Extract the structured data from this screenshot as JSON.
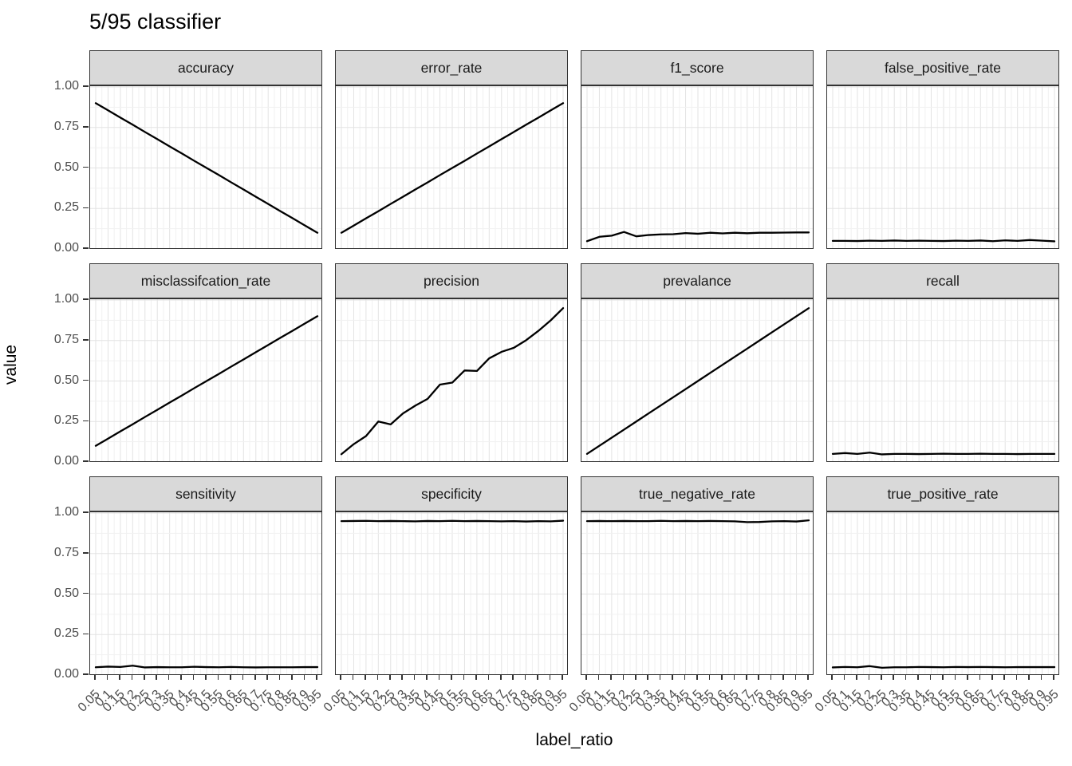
{
  "title": "5/95 classifier",
  "axes": {
    "x_title": "label_ratio",
    "y_title": "value",
    "x_tick_labels": [
      "0.05",
      "0.1",
      "0.15",
      "0.2",
      "0.25",
      "0.3",
      "0.35",
      "0.4",
      "0.45",
      "0.5",
      "0.55",
      "0.6",
      "0.65",
      "0.7",
      "0.75",
      "0.8",
      "0.85",
      "0.9",
      "0.95"
    ],
    "y_tick_labels": [
      "1.00",
      "0.75",
      "0.50",
      "0.25",
      "0.00"
    ],
    "y_tick_values": [
      1.0,
      0.75,
      0.5,
      0.25,
      0.0
    ]
  },
  "colors": {
    "line": "#000000",
    "strip_bg": "#d9d9d9",
    "panel_border": "#333333",
    "grid_major": "#e3e3e3",
    "grid_minor": "#f1f1f1",
    "tick_text": "#4d4d4d",
    "tick_mark": "#333333"
  },
  "chart_data": {
    "type": "line",
    "title": "5/95 classifier",
    "xlabel": "label_ratio",
    "ylabel": "value",
    "xlim": [
      0.05,
      0.95
    ],
    "ylim": [
      0,
      1
    ],
    "grid": "on",
    "legend": "none",
    "facet_layout": {
      "rows": 3,
      "cols": 4
    },
    "x": [
      0.05,
      0.1,
      0.15,
      0.2,
      0.25,
      0.3,
      0.35,
      0.4,
      0.45,
      0.5,
      0.55,
      0.6,
      0.65,
      0.7,
      0.75,
      0.8,
      0.85,
      0.9,
      0.95
    ],
    "facets": [
      {
        "name": "accuracy",
        "values": [
          0.9,
          0.856,
          0.811,
          0.767,
          0.722,
          0.678,
          0.633,
          0.589,
          0.544,
          0.5,
          0.456,
          0.411,
          0.367,
          0.322,
          0.278,
          0.233,
          0.189,
          0.144,
          0.1
        ]
      },
      {
        "name": "error_rate",
        "values": [
          0.1,
          0.144,
          0.189,
          0.233,
          0.278,
          0.322,
          0.367,
          0.411,
          0.456,
          0.5,
          0.544,
          0.589,
          0.633,
          0.678,
          0.722,
          0.767,
          0.811,
          0.856,
          0.9
        ]
      },
      {
        "name": "f1_score",
        "values": [
          0.048,
          0.075,
          0.082,
          0.105,
          0.078,
          0.086,
          0.09,
          0.091,
          0.098,
          0.094,
          0.1,
          0.096,
          0.1,
          0.097,
          0.1,
          0.1,
          0.101,
          0.102,
          0.102
        ]
      },
      {
        "name": "false_positive_rate",
        "values": [
          0.05,
          0.05,
          0.049,
          0.051,
          0.05,
          0.052,
          0.05,
          0.051,
          0.05,
          0.049,
          0.051,
          0.05,
          0.052,
          0.048,
          0.053,
          0.05,
          0.055,
          0.051,
          0.047
        ]
      },
      {
        "name": "misclassifcation_rate",
        "values": [
          0.1,
          0.144,
          0.189,
          0.233,
          0.278,
          0.322,
          0.367,
          0.411,
          0.456,
          0.5,
          0.544,
          0.589,
          0.633,
          0.678,
          0.722,
          0.767,
          0.811,
          0.856,
          0.9
        ]
      },
      {
        "name": "precision",
        "values": [
          0.048,
          0.11,
          0.16,
          0.25,
          0.232,
          0.3,
          0.348,
          0.39,
          0.478,
          0.49,
          0.565,
          0.562,
          0.64,
          0.68,
          0.705,
          0.752,
          0.81,
          0.875,
          0.95
        ]
      },
      {
        "name": "prevalance",
        "values": [
          0.05,
          0.1,
          0.15,
          0.2,
          0.25,
          0.3,
          0.35,
          0.4,
          0.45,
          0.5,
          0.55,
          0.6,
          0.65,
          0.7,
          0.75,
          0.8,
          0.85,
          0.9,
          0.95
        ]
      },
      {
        "name": "recall",
        "values": [
          0.05,
          0.055,
          0.05,
          0.058,
          0.047,
          0.05,
          0.05,
          0.049,
          0.05,
          0.051,
          0.05,
          0.05,
          0.051,
          0.05,
          0.05,
          0.049,
          0.05,
          0.05,
          0.05
        ]
      },
      {
        "name": "sensitivity",
        "values": [
          0.048,
          0.052,
          0.05,
          0.058,
          0.047,
          0.049,
          0.048,
          0.048,
          0.051,
          0.049,
          0.048,
          0.05,
          0.048,
          0.047,
          0.048,
          0.048,
          0.048,
          0.049,
          0.049
        ]
      },
      {
        "name": "specificity",
        "values": [
          0.95,
          0.951,
          0.952,
          0.95,
          0.951,
          0.95,
          0.949,
          0.951,
          0.95,
          0.952,
          0.95,
          0.951,
          0.95,
          0.949,
          0.95,
          0.948,
          0.95,
          0.949,
          0.953
        ]
      },
      {
        "name": "true_negative_rate",
        "values": [
          0.95,
          0.951,
          0.95,
          0.951,
          0.95,
          0.95,
          0.952,
          0.95,
          0.951,
          0.95,
          0.951,
          0.95,
          0.949,
          0.944,
          0.945,
          0.949,
          0.95,
          0.948,
          0.955
        ]
      },
      {
        "name": "true_positive_rate",
        "values": [
          0.047,
          0.05,
          0.048,
          0.055,
          0.045,
          0.048,
          0.048,
          0.05,
          0.049,
          0.048,
          0.05,
          0.049,
          0.05,
          0.049,
          0.048,
          0.049,
          0.049,
          0.049,
          0.049
        ]
      }
    ]
  }
}
